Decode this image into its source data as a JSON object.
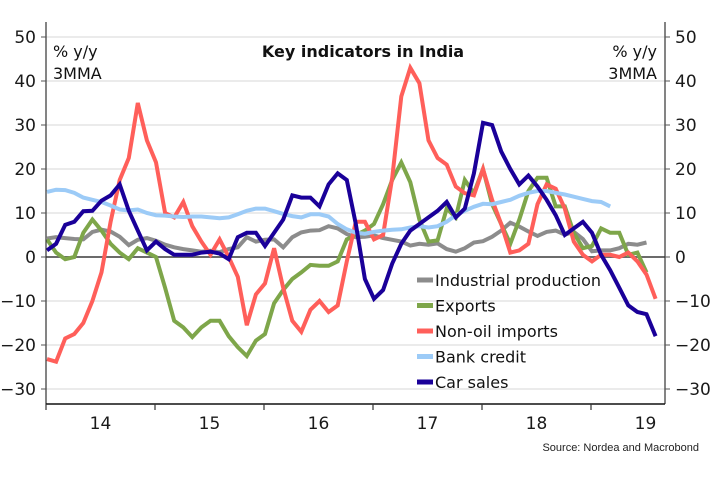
{
  "chart_data": {
    "type": "line",
    "title": "Key indicators in India",
    "ylabel_left": [
      "% y/y",
      "3MMA"
    ],
    "ylabel_right": [
      "% y/y",
      "3MMA"
    ],
    "xlabel": "",
    "ylim": [
      -32,
      52
    ],
    "yticks": [
      50,
      40,
      30,
      20,
      10,
      0,
      -10,
      -20,
      -30
    ],
    "x_start": "2014-01",
    "x_tick_labels": [
      "14",
      "15",
      "16",
      "17",
      "18",
      "19"
    ],
    "grid": true,
    "legend_position": "bottom-center",
    "source": "Source: Nordea and Macrobond",
    "series": [
      {
        "name": "Industrial production",
        "color": "#8c8c8c",
        "values": [
          4.2,
          4.5,
          4.3,
          4.1,
          4.0,
          5.7,
          6.2,
          5.8,
          4.6,
          2.7,
          3.9,
          4.3,
          3.7,
          2.8,
          2.2,
          1.8,
          1.5,
          1.2,
          1.4,
          1.1,
          1.8,
          2.2,
          4.5,
          3.5,
          3.9,
          4.0,
          2.2,
          4.5,
          5.6,
          6.0,
          6.1,
          7.0,
          6.5,
          5.2,
          4.5,
          4.6,
          4.9,
          4.3,
          3.9,
          3.5,
          2.6,
          3.0,
          2.8,
          3.1,
          1.8,
          1.2,
          2.0,
          3.3,
          3.6,
          4.6,
          6.0,
          7.8,
          6.9,
          5.8,
          4.8,
          5.7,
          6.0,
          5.1,
          5.7,
          4.1,
          1.3,
          1.5,
          1.5,
          2.0,
          3.0,
          2.8,
          3.3,
          null
        ]
      },
      {
        "name": "Exports",
        "color": "#7ea64a",
        "values": [
          4.0,
          1.0,
          -0.5,
          0.0,
          5.5,
          8.5,
          6.0,
          3.0,
          1.0,
          -0.5,
          2.0,
          1.0,
          0.0,
          -7.0,
          -14.5,
          -16.0,
          -18.2,
          -16.0,
          -14.5,
          -14.5,
          -18.0,
          -20.5,
          -22.5,
          -19.0,
          -17.5,
          -10.5,
          -7.5,
          -5.0,
          -3.5,
          -1.8,
          -2.0,
          -2.0,
          -1.0,
          4.0,
          5.0,
          6.0,
          7.5,
          12.0,
          17.5,
          21.5,
          17.0,
          8.5,
          3.5,
          3.8,
          11.0,
          9.0,
          17.5,
          14.5,
          20.0,
          12.0,
          7.5,
          3.0,
          8.5,
          15.0,
          18.0,
          18.0,
          11.5,
          11.5,
          5.5,
          2.0,
          2.5,
          6.5,
          5.5,
          5.5,
          0.5,
          1.0,
          -3.5,
          null
        ]
      },
      {
        "name": "Non-oil imports",
        "color": "#ff5f5a",
        "values": [
          -23.2,
          -23.8,
          -18.5,
          -17.5,
          -15.0,
          -10.0,
          -3.5,
          8.0,
          17.5,
          22.5,
          35.0,
          26.5,
          21.5,
          10.0,
          9.0,
          12.5,
          7.0,
          3.5,
          0.5,
          4.0,
          0.0,
          -4.5,
          -15.5,
          -8.5,
          -6.0,
          2.0,
          -7.0,
          -14.5,
          -17.0,
          -12.0,
          -10.0,
          -12.5,
          -11.0,
          -1.0,
          8.0,
          8.0,
          4.0,
          5.0,
          18.0,
          36.5,
          43.0,
          39.5,
          26.5,
          22.5,
          21.0,
          16.0,
          14.5,
          14.0,
          20.0,
          13.0,
          7.5,
          1.0,
          1.5,
          3.0,
          12.0,
          16.5,
          15.5,
          11.0,
          3.5,
          0.5,
          -1.0,
          0.5,
          0.5,
          0.0,
          1.0,
          -1.0,
          -4.0,
          -9.5
        ]
      },
      {
        "name": "Bank credit",
        "color": "#9ccbf7",
        "values": [
          14.8,
          15.3,
          15.2,
          14.6,
          13.5,
          13.0,
          12.5,
          11.7,
          10.8,
          10.6,
          10.8,
          10.0,
          9.5,
          9.4,
          9.2,
          9.1,
          9.2,
          9.2,
          9.0,
          8.8,
          9.0,
          9.7,
          10.5,
          11.0,
          11.0,
          10.4,
          9.8,
          9.3,
          9.0,
          9.7,
          9.7,
          9.2,
          7.5,
          6.3,
          5.5,
          5.3,
          5.7,
          6.0,
          6.2,
          6.3,
          6.7,
          7.0,
          6.7,
          7.0,
          8.0,
          9.5,
          10.5,
          11.4,
          12.1,
          12.0,
          12.5,
          13.0,
          13.9,
          14.6,
          15.0,
          15.0,
          14.6,
          14.2,
          13.7,
          13.2,
          12.7,
          12.5,
          11.5,
          null,
          null,
          null,
          null,
          null
        ]
      },
      {
        "name": "Car sales",
        "color": "#1a0099",
        "values": [
          1.5,
          3.0,
          7.3,
          8.0,
          10.4,
          10.5,
          12.8,
          14.0,
          16.5,
          10.5,
          6.0,
          1.5,
          3.5,
          1.8,
          0.5,
          0.5,
          0.5,
          1.0,
          1.2,
          0.8,
          -0.5,
          4.5,
          5.5,
          5.5,
          2.5,
          5.5,
          8.5,
          14.0,
          13.5,
          13.5,
          11.5,
          16.5,
          19.0,
          17.5,
          7.5,
          -5.0,
          -9.5,
          -7.5,
          -1.5,
          3.0,
          6.0,
          7.5,
          9.0,
          10.5,
          12.5,
          9.0,
          11.0,
          19.0,
          30.5,
          30.0,
          24.0,
          20.0,
          16.5,
          18.5,
          16.0,
          13.0,
          9.5,
          5.0,
          6.5,
          8.0,
          5.5,
          0.5,
          -3.0,
          -7.0,
          -11.0,
          -12.5,
          -13.0,
          -18.0
        ]
      }
    ]
  }
}
